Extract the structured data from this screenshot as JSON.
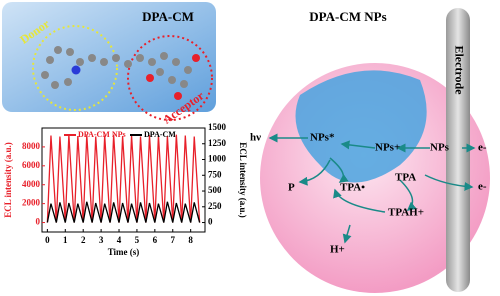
{
  "molecule": {
    "title": "DPA-CM",
    "donor": "Donor",
    "acceptor": "Acceptor"
  },
  "chart_data": {
    "type": "line",
    "x": [
      0,
      0.2,
      0.5,
      0.7,
      1,
      1.2,
      1.5,
      1.7,
      2,
      2.2,
      2.5,
      2.7,
      3,
      3.2,
      3.5,
      3.7,
      4,
      4.2,
      4.5,
      4.7,
      5,
      5.2,
      5.5,
      5.7,
      6,
      6.2,
      6.5,
      6.7,
      7,
      7.2,
      7.5,
      7.7,
      8,
      8.2,
      8.5
    ],
    "series": [
      {
        "name": "DPA-CM NPs",
        "color": "#e8202a",
        "values": [
          0,
          9200,
          0,
          9100,
          0,
          9300,
          0,
          9150,
          0,
          9250,
          0,
          9100,
          0,
          9200,
          0,
          9300,
          0,
          9150,
          0,
          9200,
          0,
          9100,
          0,
          9250,
          0,
          9200,
          0,
          9150,
          0,
          9300,
          0,
          9200,
          0,
          9100,
          0
        ]
      },
      {
        "name": "DPA-CM",
        "color": "#000000",
        "axis": "y2",
        "values": [
          0,
          300,
          0,
          320,
          0,
          310,
          0,
          300,
          0,
          330,
          0,
          310,
          0,
          300,
          0,
          320,
          0,
          310,
          0,
          300,
          0,
          320,
          0,
          310,
          0,
          300,
          0,
          330,
          0,
          310,
          0,
          300,
          0,
          320,
          0
        ]
      }
    ],
    "xlabel": "Time (s)",
    "ylabel": "ECL intensity (a.u.)",
    "y2label": "ECL intensity (a.u.)",
    "xlim": [
      -0.3,
      8.8
    ],
    "xticks": [
      0,
      1,
      2,
      3,
      4,
      5,
      6,
      7,
      8
    ],
    "ylim": [
      -1000,
      10000
    ],
    "yticks": [
      0,
      2000,
      4000,
      6000,
      8000
    ],
    "y2lim": [
      -150,
      1500
    ],
    "y2ticks": [
      0,
      250,
      500,
      750,
      1000,
      1250,
      1500
    ]
  },
  "scheme": {
    "title": "DPA-CM NPs",
    "electrode": "Electrode",
    "hv": "hν",
    "nps_excited": "NPs*",
    "nps_cation": "NPs+",
    "nps": "NPs",
    "electron_1": "e-",
    "product": "P",
    "tpa_radical": "TPA•",
    "tpa": "TPA",
    "tpah": "TPAH+",
    "proton": "H+",
    "electron_2": "e-"
  }
}
